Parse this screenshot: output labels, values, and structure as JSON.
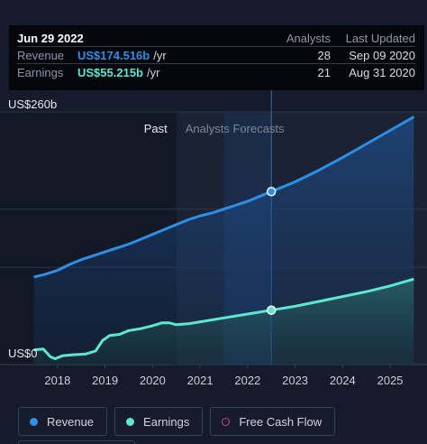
{
  "tooltip": {
    "date": "Jun 29 2022",
    "col_analysts": "Analysts",
    "col_last_updated": "Last Updated",
    "rows": [
      {
        "label": "Revenue",
        "value": "US$174.516b",
        "unit": "/yr",
        "analysts": "28",
        "last_updated": "Sep 09 2020",
        "color": "#2e8fe6"
      },
      {
        "label": "Earnings",
        "value": "US$55.215b",
        "unit": "/yr",
        "analysts": "21",
        "last_updated": "Aug 31 2020",
        "color": "#5fe6cf"
      }
    ]
  },
  "chart_data": {
    "type": "area",
    "y_top_label": "US$260b",
    "y_bottom_label": "US$0",
    "ylim": [
      0,
      260
    ],
    "xlim": [
      2017.5,
      2025.55
    ],
    "x_tick_labels": [
      "2018",
      "2019",
      "2020",
      "2021",
      "2022",
      "2023",
      "2024",
      "2025"
    ],
    "x_ticks": [
      2018,
      2019,
      2020,
      2021,
      2022,
      2023,
      2024,
      2025
    ],
    "past_label": "Past",
    "forecast_label": "Analysts Forecasts",
    "past_end": 2020.5,
    "forecast_band": [
      2021.5,
      2022.5
    ],
    "highlight_x": 2022.5,
    "series": [
      {
        "name": "Revenue",
        "color": "#2e8fe6",
        "points": [
          [
            2017.5,
            90
          ],
          [
            2017.75,
            93
          ],
          [
            2018.0,
            97
          ],
          [
            2018.25,
            103
          ],
          [
            2018.5,
            108
          ],
          [
            2018.75,
            112
          ],
          [
            2019.0,
            116
          ],
          [
            2019.25,
            120
          ],
          [
            2019.5,
            124
          ],
          [
            2019.75,
            129
          ],
          [
            2020.0,
            134
          ],
          [
            2020.25,
            139
          ],
          [
            2020.5,
            144
          ],
          [
            2020.75,
            149
          ],
          [
            2021.0,
            153
          ],
          [
            2021.25,
            156
          ],
          [
            2021.5,
            160
          ],
          [
            2021.75,
            164
          ],
          [
            2022.0,
            168
          ],
          [
            2022.25,
            173
          ],
          [
            2022.5,
            178
          ],
          [
            2023.0,
            188
          ],
          [
            2023.5,
            200
          ],
          [
            2024.0,
            213
          ],
          [
            2024.5,
            227
          ],
          [
            2025.0,
            241
          ],
          [
            2025.5,
            255
          ]
        ]
      },
      {
        "name": "Earnings",
        "color": "#5fe6cf",
        "points": [
          [
            2017.5,
            15
          ],
          [
            2017.7,
            16
          ],
          [
            2017.85,
            8
          ],
          [
            2017.95,
            6
          ],
          [
            2018.1,
            9
          ],
          [
            2018.3,
            10
          ],
          [
            2018.6,
            11
          ],
          [
            2018.8,
            14
          ],
          [
            2018.95,
            25
          ],
          [
            2019.1,
            30
          ],
          [
            2019.3,
            31
          ],
          [
            2019.5,
            35
          ],
          [
            2019.75,
            37
          ],
          [
            2020.0,
            40
          ],
          [
            2020.2,
            43
          ],
          [
            2020.35,
            43
          ],
          [
            2020.5,
            41
          ],
          [
            2020.75,
            42
          ],
          [
            2021.0,
            44
          ],
          [
            2021.5,
            48
          ],
          [
            2022.0,
            52
          ],
          [
            2022.5,
            56
          ],
          [
            2023.0,
            60
          ],
          [
            2023.5,
            65
          ],
          [
            2024.0,
            70
          ],
          [
            2024.5,
            75
          ],
          [
            2025.0,
            81
          ],
          [
            2025.5,
            88
          ]
        ]
      }
    ]
  },
  "legend": [
    {
      "label": "Revenue",
      "color": "#2e8fe6"
    },
    {
      "label": "Earnings",
      "color": "#5fe6cf"
    },
    {
      "label": "Free Cash Flow",
      "color": "#c9487e"
    }
  ]
}
